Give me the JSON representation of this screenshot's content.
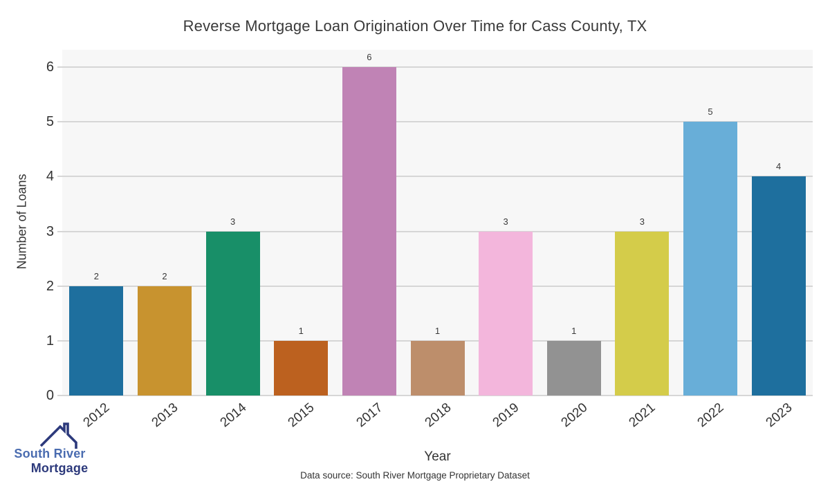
{
  "chart_data": {
    "type": "bar",
    "title": "Reverse Mortgage Loan Origination Over Time for Cass County, TX",
    "xlabel": "Year",
    "ylabel": "Number of Loans",
    "categories": [
      "2012",
      "2013",
      "2014",
      "2015",
      "2017",
      "2018",
      "2019",
      "2020",
      "2021",
      "2022",
      "2023"
    ],
    "values": [
      2,
      2,
      3,
      1,
      6,
      1,
      3,
      1,
      3,
      5,
      4
    ],
    "bar_colors": [
      "#1e6f9e",
      "#c8932f",
      "#188f68",
      "#bc611f",
      "#c083b5",
      "#bd8e6b",
      "#f3b6dc",
      "#929292",
      "#d4cc4a",
      "#68aed8",
      "#1e6f9e"
    ],
    "ylim": [
      0,
      6
    ],
    "yticks": [
      0,
      1,
      2,
      3,
      4,
      5,
      6
    ],
    "grid": true,
    "value_labels": true,
    "legend": "none"
  },
  "footer": {
    "source_text": "Data source: South River Mortgage Proprietary Dataset"
  },
  "logo": {
    "line1": "South River",
    "line2": "Mortgage"
  },
  "colors": {
    "plot_bg": "#f7f7f7",
    "grid": "#d6d6d6",
    "text": "#333333",
    "title_text": "#3a3a3a",
    "logo_blue": "#4a6cb0",
    "logo_navy": "#2d3a7c"
  }
}
